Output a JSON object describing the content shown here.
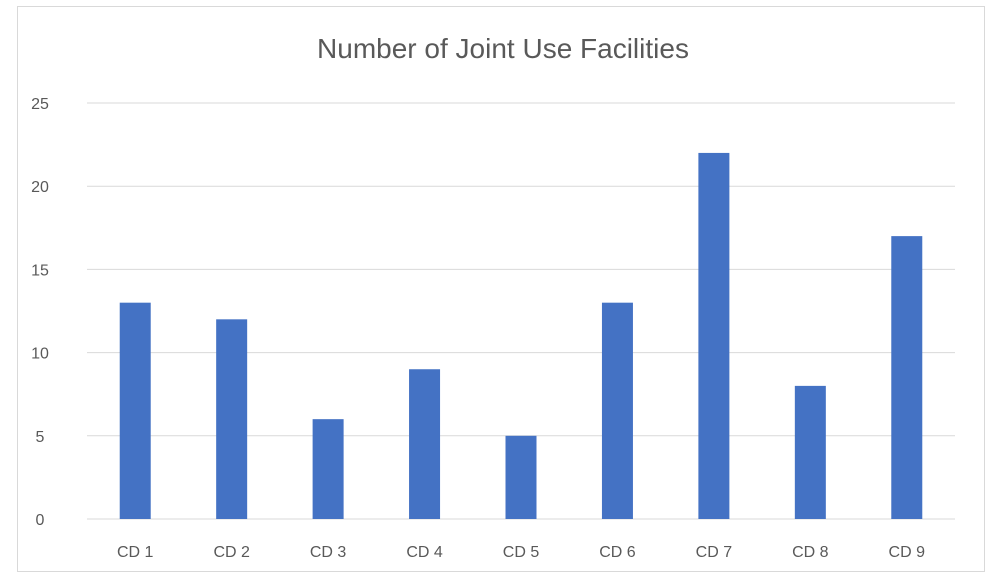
{
  "chart_data": {
    "type": "bar",
    "title": "Number of Joint Use Facilities",
    "xlabel": "",
    "ylabel": "",
    "categories": [
      "CD 1",
      "CD 2",
      "CD 3",
      "CD 4",
      "CD 5",
      "CD 6",
      "CD 7",
      "CD 8",
      "CD 9"
    ],
    "values": [
      13,
      12,
      6,
      9,
      5,
      13,
      22,
      8,
      17
    ],
    "ylim": [
      0,
      25
    ],
    "yticks": [
      "0",
      "5",
      "10",
      "15",
      "20",
      "25"
    ],
    "grid": true,
    "legend": "none",
    "colors": {
      "bar": "#4472C4",
      "grid": "#D9D9D9",
      "text": "#595959"
    }
  }
}
